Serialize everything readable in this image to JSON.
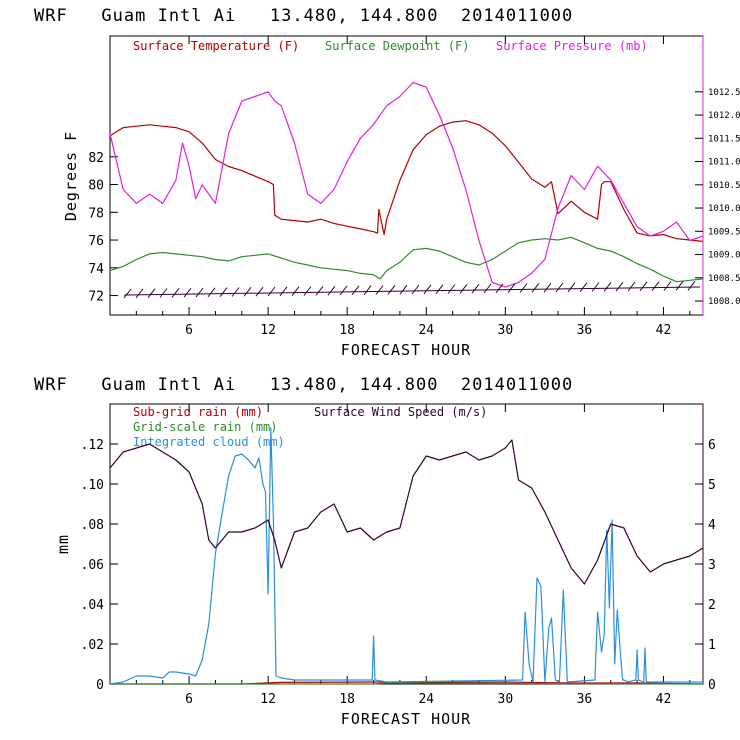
{
  "chart_data": [
    {
      "type": "line",
      "title": "WRF   Guam Intl Ai   13.480, 144.800  2014011000",
      "xlabel": "FORECAST HOUR",
      "ylabel": "Degrees F",
      "xlim": [
        0,
        45
      ],
      "ylim": [
        70.6,
        90.7
      ],
      "y2lim": [
        1007.7,
        1013.7
      ],
      "x_ticks": [
        "6",
        "12",
        "18",
        "24",
        "30",
        "36",
        "42"
      ],
      "y_ticks": [
        "72",
        "74",
        "76",
        "78",
        "80",
        "82"
      ],
      "y2_ticks": [
        "1008.0",
        "1008.5",
        "1009.0",
        "1009.5",
        "1010.0",
        "1010.5",
        "1011.0",
        "1011.5",
        "1012.0",
        "1012.5"
      ],
      "legend": [
        "Surface Temperature (F)",
        "Surface Dewpoint (F)",
        "Surface Pressure (mb)"
      ],
      "colors": {
        "temperature": "#b30000",
        "dewpoint": "#2e8b2e",
        "pressure": "#e020e0",
        "wind_barbs": "#330033",
        "axes": "#000000"
      },
      "series": [
        {
          "name": "Surface Temperature (F)",
          "axis": "left",
          "x": [
            0,
            1,
            2,
            3,
            4,
            5,
            6,
            7,
            8,
            9,
            10,
            11,
            12,
            12.4,
            12.5,
            13,
            14,
            15,
            16,
            17,
            18,
            19,
            20,
            20.3,
            20.4,
            20.8,
            21,
            22,
            23,
            24,
            25,
            26,
            27,
            28,
            29,
            30,
            31,
            32,
            33,
            33.5,
            34,
            35,
            36,
            37,
            37.3,
            37.5,
            38,
            39,
            40,
            41,
            42,
            43,
            44,
            45
          ],
          "y": [
            83.5,
            84.1,
            84.2,
            84.3,
            84.2,
            84.1,
            83.8,
            83.0,
            81.8,
            81.3,
            81.0,
            80.6,
            80.2,
            80.0,
            77.8,
            77.5,
            77.4,
            77.3,
            77.5,
            77.2,
            77.0,
            76.8,
            76.6,
            76.5,
            78.2,
            76.4,
            77.5,
            80.3,
            82.5,
            83.6,
            84.2,
            84.5,
            84.6,
            84.3,
            83.7,
            82.8,
            81.6,
            80.4,
            79.8,
            80.2,
            77.9,
            78.8,
            78.0,
            77.5,
            80.0,
            80.2,
            80.2,
            78.2,
            76.5,
            76.3,
            76.4,
            76.1,
            76.0,
            75.9
          ]
        },
        {
          "name": "Surface Dewpoint (F)",
          "axis": "left",
          "x": [
            0,
            1,
            2,
            3,
            4,
            5,
            6,
            7,
            8,
            9,
            10,
            11,
            12,
            13,
            14,
            15,
            16,
            17,
            18,
            19,
            20,
            20.5,
            21,
            22,
            23,
            24,
            25,
            26,
            27,
            28,
            29,
            30,
            31,
            32,
            33,
            34,
            35,
            36,
            37,
            38,
            39,
            40,
            41,
            42,
            43,
            44,
            45
          ],
          "y": [
            73.8,
            74.1,
            74.6,
            75.0,
            75.1,
            75.0,
            74.9,
            74.8,
            74.6,
            74.5,
            74.8,
            74.9,
            75.0,
            74.7,
            74.4,
            74.2,
            74.0,
            73.9,
            73.8,
            73.6,
            73.5,
            73.2,
            73.8,
            74.4,
            75.3,
            75.4,
            75.2,
            74.8,
            74.4,
            74.2,
            74.6,
            75.2,
            75.8,
            76.0,
            76.1,
            76.0,
            76.2,
            75.8,
            75.4,
            75.2,
            74.8,
            74.3,
            73.9,
            73.4,
            73.0,
            73.1,
            73.2
          ]
        },
        {
          "name": "Surface Pressure (mb)",
          "axis": "right",
          "x": [
            0,
            0.5,
            1,
            2,
            3,
            4,
            5,
            5.5,
            6,
            6.5,
            7,
            8,
            9,
            10,
            11,
            12,
            12.5,
            13,
            14,
            15,
            16,
            17,
            18,
            19,
            20,
            21,
            22,
            23,
            24,
            25,
            26,
            27,
            28,
            29,
            30,
            31,
            32,
            33,
            34,
            35,
            36,
            37,
            38,
            39,
            40,
            41,
            42,
            43,
            44,
            45
          ],
          "y": [
            1011.6,
            1011.0,
            1010.4,
            1010.1,
            1010.3,
            1010.1,
            1010.6,
            1011.4,
            1010.9,
            1010.2,
            1010.5,
            1010.1,
            1011.6,
            1012.3,
            1012.4,
            1012.5,
            1012.3,
            1012.2,
            1011.4,
            1010.3,
            1010.1,
            1010.4,
            1011.0,
            1011.5,
            1011.8,
            1012.2,
            1012.4,
            1012.7,
            1012.6,
            1012.0,
            1011.3,
            1010.4,
            1009.3,
            1008.4,
            1008.3,
            1008.4,
            1008.6,
            1008.9,
            1010.0,
            1010.7,
            1010.4,
            1010.9,
            1010.6,
            1010.1,
            1009.6,
            1009.4,
            1009.5,
            1009.7,
            1009.3,
            1009.4
          ]
        }
      ]
    },
    {
      "type": "line",
      "title": "WRF   Guam Intl Ai   13.480, 144.800  2014011000",
      "xlabel": "FORECAST HOUR",
      "ylabel": "mm",
      "xlim": [
        0,
        45
      ],
      "ylim": [
        0,
        0.14
      ],
      "y2lim": [
        0,
        7
      ],
      "x_ticks": [
        "6",
        "12",
        "18",
        "24",
        "30",
        "36",
        "42"
      ],
      "y_ticks": [
        "0",
        ".02",
        ".04",
        ".06",
        ".08",
        ".10",
        ".12"
      ],
      "y2_ticks": [
        "0",
        "1",
        "2",
        "3",
        "4",
        "5",
        "6"
      ],
      "legend": [
        "Sub-grid rain (mm)",
        "Grid-scale rain (mm)",
        "Integrated cloud (mm)",
        "Surface Wind Speed (m/s)"
      ],
      "colors": {
        "subgrid_rain": "#b30000",
        "gridscale_rain": "#2e8b2e",
        "cloud": "#2c8fd8",
        "wind_speed": "#330033",
        "axes": "#000000"
      },
      "series": [
        {
          "name": "Sub-grid rain (mm)",
          "axis": "left",
          "x": [
            0,
            10,
            13,
            20,
            24,
            30,
            35,
            40,
            45
          ],
          "y": [
            0,
            0,
            0.0008,
            0.001,
            0.0008,
            0.001,
            0.0005,
            0.0005,
            0
          ]
        },
        {
          "name": "Grid-scale rain (mm)",
          "axis": "left",
          "x": [
            0,
            20,
            21,
            30,
            45
          ],
          "y": [
            0,
            0,
            0.0005,
            0.0003,
            0
          ]
        },
        {
          "name": "Integrated cloud (mm)",
          "axis": "left",
          "x": [
            0,
            1,
            2,
            3,
            4,
            4.5,
            5,
            6,
            6.5,
            7,
            7.5,
            8,
            8.5,
            9,
            9.5,
            10,
            10.5,
            11,
            11.3,
            11.6,
            11.8,
            12.0,
            12.2,
            12.4,
            12.6,
            13,
            14,
            18,
            19.9,
            20.0,
            20.1,
            21,
            31.3,
            31.5,
            31.8,
            32.1,
            32.4,
            32.7,
            33.0,
            33.3,
            33.5,
            33.8,
            34.1,
            34.4,
            34.7,
            36.8,
            37.0,
            37.3,
            37.5,
            37.7,
            37.9,
            38.1,
            38.3,
            38.5,
            38.7,
            38.9,
            39.0,
            39.3,
            39.9,
            40.0,
            40.1,
            40.5,
            40.6,
            40.7,
            45
          ],
          "y": [
            0,
            0.001,
            0.004,
            0.004,
            0.003,
            0.006,
            0.006,
            0.005,
            0.004,
            0.012,
            0.03,
            0.065,
            0.085,
            0.104,
            0.114,
            0.115,
            0.112,
            0.108,
            0.113,
            0.1,
            0.096,
            0.045,
            0.128,
            0.082,
            0.004,
            0.003,
            0.002,
            0.002,
            0.002,
            0.024,
            0.002,
            0.001,
            0.002,
            0.036,
            0.01,
            0.001,
            0.053,
            0.049,
            0.001,
            0.028,
            0.033,
            0.002,
            0.001,
            0.047,
            0.001,
            0.002,
            0.036,
            0.016,
            0.025,
            0.077,
            0.038,
            0.082,
            0.01,
            0.037,
            0.018,
            0.002,
            0.002,
            0.001,
            0.002,
            0.017,
            0.002,
            0.001,
            0.018,
            0.001,
            0.001
          ]
        },
        {
          "name": "Surface Wind Speed (m/s)",
          "axis": "right",
          "x": [
            0,
            1,
            2,
            3,
            4,
            5,
            6,
            7,
            7.5,
            8,
            9,
            10,
            11,
            12,
            12.5,
            13,
            14,
            15,
            16,
            17,
            18,
            19,
            20,
            21,
            22,
            23,
            24,
            25,
            26,
            27,
            28,
            29,
            30,
            30.5,
            31,
            32,
            33,
            34,
            35,
            36,
            37,
            38,
            39,
            40,
            41,
            42,
            43,
            44,
            45
          ],
          "y": [
            5.4,
            5.8,
            5.9,
            6.0,
            5.8,
            5.6,
            5.3,
            4.5,
            3.6,
            3.4,
            3.8,
            3.8,
            3.9,
            4.1,
            3.6,
            2.9,
            3.8,
            3.9,
            4.3,
            4.5,
            3.8,
            3.9,
            3.6,
            3.8,
            3.9,
            5.2,
            5.7,
            5.6,
            5.7,
            5.8,
            5.6,
            5.7,
            5.9,
            6.1,
            5.1,
            4.9,
            4.3,
            3.6,
            2.9,
            2.5,
            3.1,
            4.0,
            3.9,
            3.2,
            2.8,
            3.0,
            3.1,
            3.2,
            3.4
          ]
        }
      ]
    }
  ]
}
